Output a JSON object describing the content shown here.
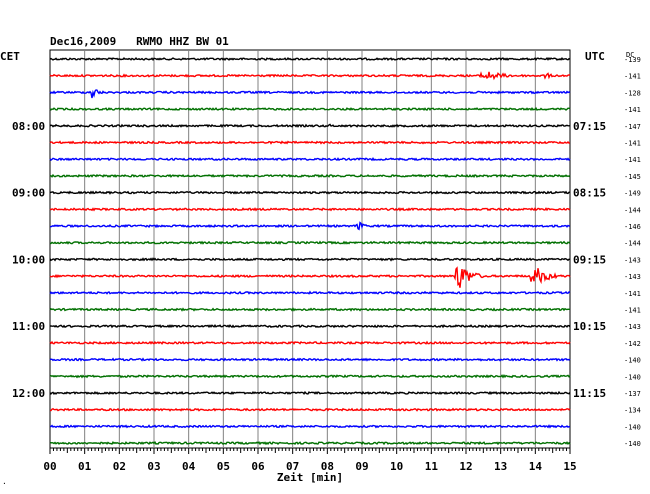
{
  "header": {
    "title": "Dec16,2009   RWMO HHZ BW 01"
  },
  "labels": {
    "left_timezone": "CET",
    "right_timezone": "UTC",
    "dc_header": "DC",
    "xlabel": "Zeit [min]",
    "corner_mark": "."
  },
  "colors": {
    "black": "#000000",
    "red": "#ff0000",
    "blue": "#0000ff",
    "green": "#007000",
    "grid": "#808080"
  },
  "chart_data": {
    "type": "line",
    "title": "Dec16,2009   RWMO HHZ BW 01",
    "xlabel": "Zeit [min]",
    "xlim": [
      0,
      15
    ],
    "x_ticks": [
      "00",
      "01",
      "02",
      "03",
      "04",
      "05",
      "06",
      "07",
      "08",
      "09",
      "10",
      "11",
      "12",
      "13",
      "14",
      "15"
    ],
    "trace_count": 24,
    "trace_colors": [
      "black",
      "red",
      "blue",
      "green"
    ],
    "left_hour_labels": [
      {
        "trace": 4,
        "label": "08:00"
      },
      {
        "trace": 8,
        "label": "09:00"
      },
      {
        "trace": 12,
        "label": "10:00"
      },
      {
        "trace": 16,
        "label": "11:00"
      },
      {
        "trace": 20,
        "label": "12:00"
      }
    ],
    "right_hour_labels": [
      {
        "trace": 4,
        "label": "07:15"
      },
      {
        "trace": 8,
        "label": "08:15"
      },
      {
        "trace": 12,
        "label": "09:15"
      },
      {
        "trace": 16,
        "label": "10:15"
      },
      {
        "trace": 20,
        "label": "11:15"
      }
    ],
    "dc_values": [
      "-139",
      "-141",
      "-128",
      "-141",
      "-147",
      "-141",
      "-141",
      "-145",
      "-149",
      "-144",
      "-146",
      "-144",
      "-143",
      "-143",
      "-141",
      "-141",
      "-143",
      "-142",
      "-140",
      "-140",
      "-137",
      "-134",
      "-140",
      "-140"
    ],
    "events": [
      {
        "trace": 1,
        "minute": 12.6,
        "amplitude": 5,
        "duration": 1.2
      },
      {
        "trace": 1,
        "minute": 14.3,
        "amplitude": 3,
        "duration": 0.5
      },
      {
        "trace": 2,
        "minute": 1.2,
        "amplitude": 8,
        "duration": 0.4
      },
      {
        "trace": 4,
        "minute": 8.1,
        "amplitude": 2,
        "duration": 0.3
      },
      {
        "trace": 10,
        "minute": 8.9,
        "amplitude": 5,
        "duration": 0.4
      },
      {
        "trace": 13,
        "minute": 11.8,
        "amplitude": 14,
        "duration": 0.8
      },
      {
        "trace": 13,
        "minute": 14.0,
        "amplitude": 10,
        "duration": 0.9
      }
    ]
  }
}
